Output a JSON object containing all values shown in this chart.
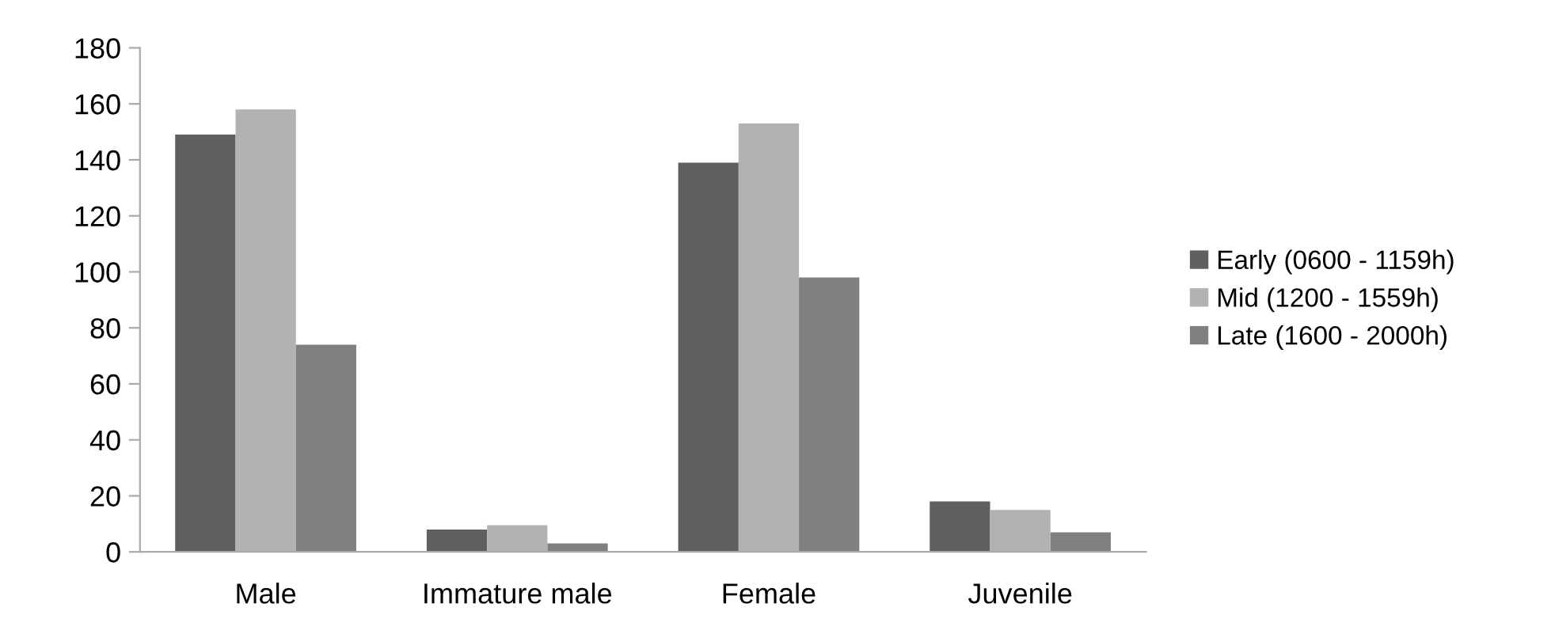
{
  "chart_data": {
    "type": "bar",
    "categories": [
      "Male",
      "Immature male",
      "Female",
      "Juvenile"
    ],
    "series": [
      {
        "name": "Early (0600 - 1159h)",
        "color": "#606060",
        "values": [
          149,
          8,
          139,
          18
        ]
      },
      {
        "name": "Mid (1200 - 1559h)",
        "color": "#b2b2b2",
        "values": [
          158,
          9.5,
          153,
          15
        ]
      },
      {
        "name": "Late (1600 - 2000h)",
        "color": "#808080",
        "values": [
          74,
          3,
          98,
          7
        ]
      }
    ],
    "ylim": [
      0,
      180
    ],
    "yticks": [
      0,
      20,
      40,
      60,
      80,
      100,
      120,
      140,
      160,
      180
    ],
    "grid": false,
    "legend": "right"
  }
}
